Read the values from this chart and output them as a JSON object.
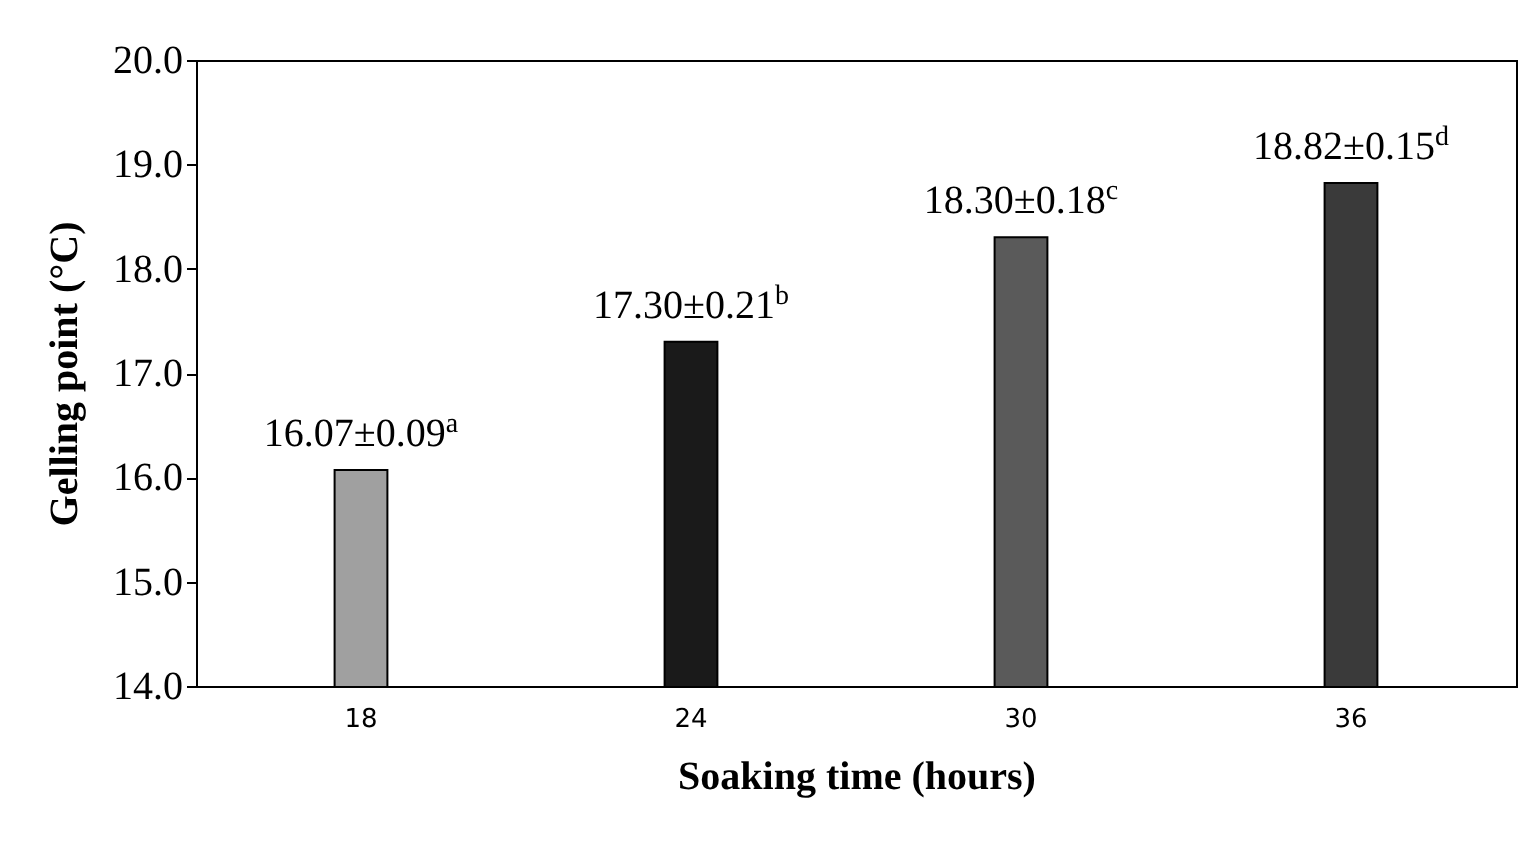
{
  "chart_data": {
    "type": "bar",
    "xlabel": "Soaking time (hours)",
    "ylabel": "Gelling point (°C)",
    "categories": [
      "18",
      "24",
      "30",
      "36"
    ],
    "values": [
      16.07,
      17.3,
      18.3,
      18.82
    ],
    "colors": [
      "#a0a0a0",
      "#1a1a1a",
      "#5a5a5a",
      "#3a3a3a"
    ],
    "value_labels": [
      "16.07±0.09$^{a}$",
      "17.30±0.21$^{b}$",
      "18.30±0.18$^{c}$",
      "18.82±0.15$^{d}$"
    ],
    "ylim": [
      14,
      20
    ],
    "yticks": [
      {
        "value": 14,
        "label": "14.0"
      },
      {
        "value": 15,
        "label": "15.0"
      },
      {
        "value": 16,
        "label": "16.0"
      },
      {
        "value": 17,
        "label": "17.0"
      },
      {
        "value": 18,
        "label": "18.0"
      },
      {
        "value": 19,
        "label": "19.0"
      },
      {
        "value": 20,
        "label": "20.0"
      }
    ],
    "grid": false
  }
}
